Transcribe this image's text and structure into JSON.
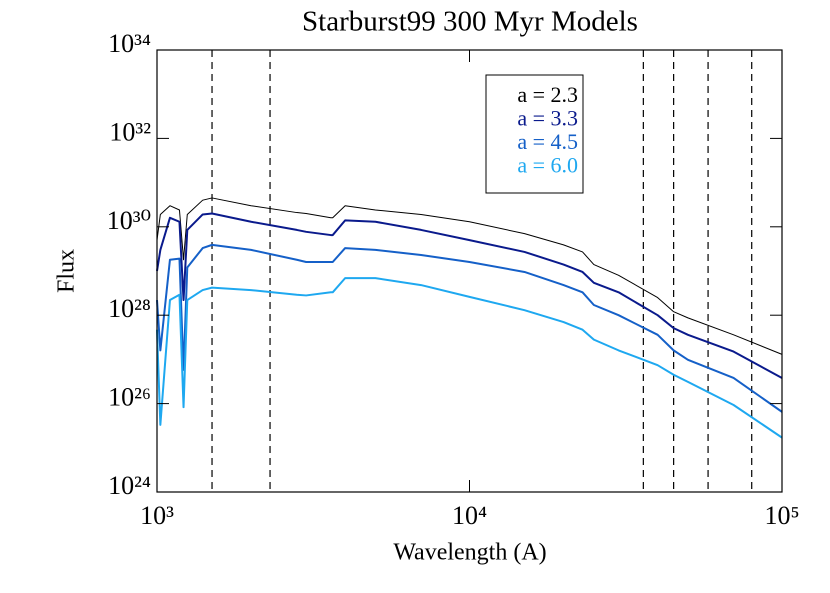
{
  "chart_data": {
    "type": "line",
    "title": "Starburst99 300 Myr Models",
    "x_label": "Wavelength (A)",
    "y_label": "Flux",
    "xlog": true,
    "ylog": true,
    "xlim": [
      1000,
      100000
    ],
    "ylim": [
      1e+24,
      1e+34
    ],
    "xticks": [
      {
        "value": 1000,
        "label": "10³"
      },
      {
        "value": 10000,
        "label": "10⁴"
      },
      {
        "value": 100000,
        "label": "10⁵"
      }
    ],
    "yticks": [
      {
        "value": 1e+24,
        "label": "10²⁴"
      },
      {
        "value": 1e+26,
        "label": "10²⁶"
      },
      {
        "value": 1e+28,
        "label": "10²⁸"
      },
      {
        "value": 1e+30,
        "label": "10³⁰"
      },
      {
        "value": 1e+32,
        "label": "10³²"
      },
      {
        "value": 1e+34,
        "label": "10³⁴"
      }
    ],
    "vlines": [
      1500,
      2300,
      36000,
      45000,
      58000,
      80000
    ],
    "legend": "upper right",
    "x": [
      1000,
      1025,
      1100,
      1180,
      1216,
      1250,
      1400,
      1500,
      2000,
      2800,
      3000,
      3600,
      3650,
      4000,
      5000,
      7000,
      10000,
      15000,
      20000,
      23000,
      25000,
      30000,
      40000,
      45000,
      50000,
      70000,
      100000
    ],
    "series": [
      {
        "name": "a = 2.3",
        "color": "#000000",
        "width": 1,
        "values": [
          5e+29,
          1.9e+30,
          3e+30,
          2.4e+30,
          1.8e+29,
          1.9e+30,
          4e+30,
          4.5e+30,
          3e+30,
          2.1e+30,
          2e+30,
          1.6e+30,
          1.6e+30,
          3e+30,
          2.4e+30,
          1.9e+30,
          1.3e+30,
          7e+29,
          3.9e+29,
          2.7e+29,
          1.4e+29,
          8e+28,
          2.5e+28,
          1.2e+28,
          8.7e+27,
          3.6e+27,
          1.3e+27
        ]
      },
      {
        "name": "a = 3.3",
        "color": "#0a1a8c",
        "width": 2,
        "values": [
          1e+29,
          3e+29,
          1.6e+30,
          1.3e+30,
          2.2e+28,
          8.5e+29,
          1.9e+30,
          2e+30,
          1.3e+30,
          8.5e+29,
          7.7e+29,
          6.5e+29,
          6.5e+29,
          1.4e+30,
          1.3e+30,
          8.5e+29,
          5e+29,
          2.7e+29,
          1.4e+29,
          9.5e+28,
          5.4e+28,
          3.3e+28,
          1e+28,
          5.1e+27,
          3.6e+27,
          1.5e+27,
          3.8e+26
        ]
      },
      {
        "name": "a = 4.5",
        "color": "#1560c8",
        "width": 2,
        "values": [
          2.2e+28,
          1.6e+27,
          1.8e+29,
          1.9e+29,
          5.8e+26,
          1.2e+29,
          3.3e+29,
          3.9e+29,
          3e+29,
          1.8e+29,
          1.6e+29,
          1.6e+29,
          1.6e+29,
          3.3e+29,
          3e+29,
          2.3e+29,
          1.6e+29,
          9.5e+28,
          4.8e+28,
          3.3e+28,
          1.7e+28,
          1e+28,
          3.6e+27,
          1.6e+27,
          9.8e+26,
          3.8e+26,
          6.5e+25
        ]
      },
      {
        "name": "a = 6.0",
        "color": "#1ea8f0",
        "width": 2,
        "values": [
          4.7e+27,
          3.3e+25,
          2.2e+28,
          2.9e+28,
          8.3e+25,
          2.2e+28,
          3.7e+28,
          4.2e+28,
          3.7e+28,
          2.9e+28,
          2.8e+28,
          3.3e+28,
          3.3e+28,
          6.9e+28,
          6.9e+28,
          4.8e+28,
          2.6e+28,
          1.3e+28,
          7e+27,
          4.7e+27,
          2.8e+27,
          1.6e+27,
          7.4e+26,
          4.5e+26,
          3.1e+26,
          9.3e+25,
          1.7e+25
        ]
      }
    ]
  }
}
